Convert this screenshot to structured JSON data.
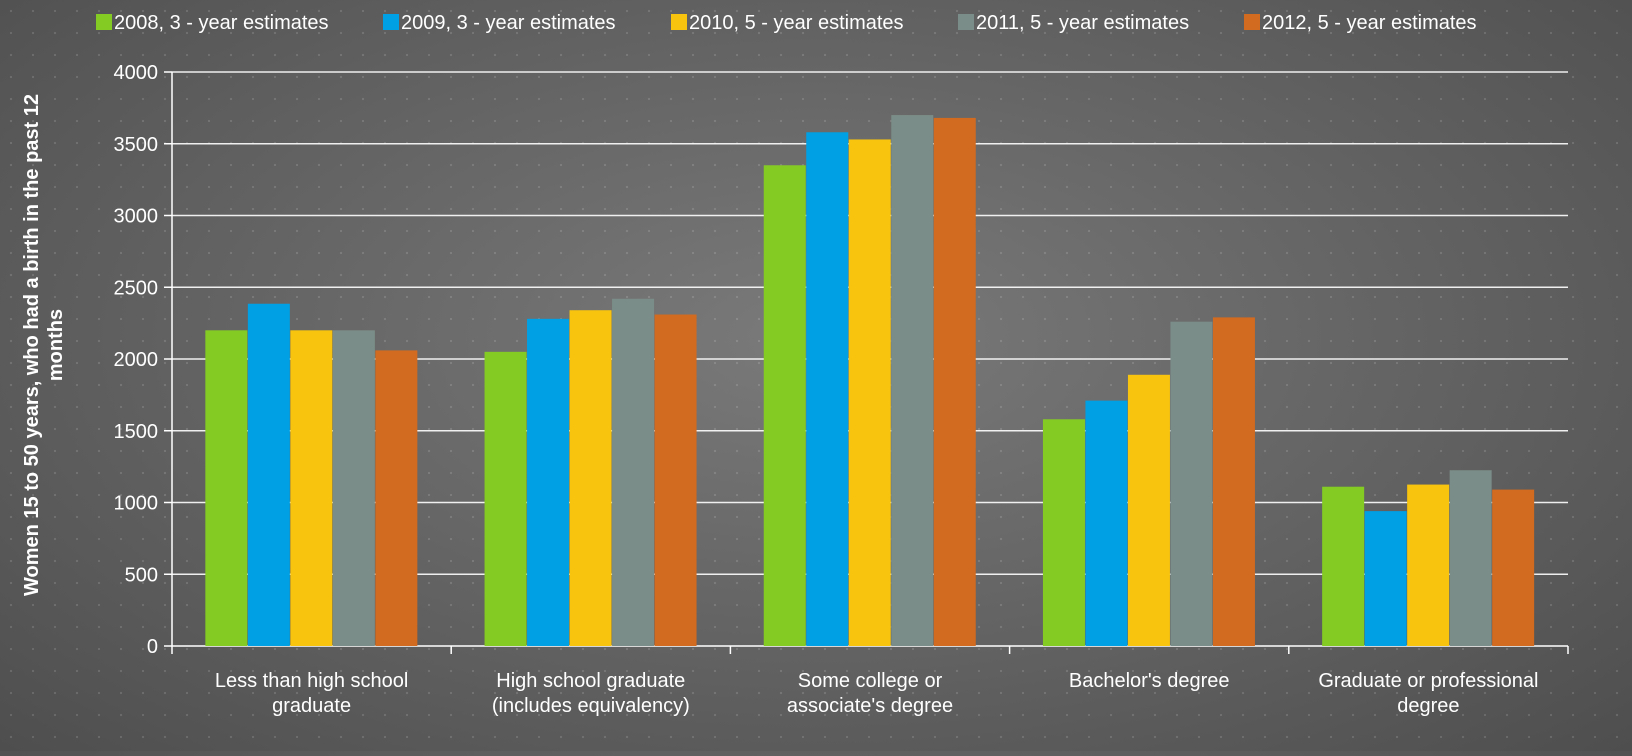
{
  "chart_data": {
    "type": "bar",
    "title": "",
    "ylabel": "Women 15 to 50 years, who had a birth in the past 12 months",
    "xlabel": "",
    "ylim": [
      0,
      4000
    ],
    "yticks": [
      0,
      500,
      1000,
      1500,
      2000,
      2500,
      3000,
      3500,
      4000
    ],
    "grid": "horizontal",
    "legend_position": "top",
    "categories": [
      [
        "Less than high school",
        "graduate"
      ],
      [
        "High school graduate",
        "(includes equivalency)"
      ],
      [
        "Some college or",
        "associate's degree"
      ],
      [
        "Bachelor's degree"
      ],
      [
        "Graduate or professional",
        "degree"
      ]
    ],
    "series": [
      {
        "name": "2008, 3 - year estimates",
        "color": "#84cc24",
        "values": [
          2200,
          2050,
          3350,
          1580,
          1110
        ]
      },
      {
        "name": "2009, 3 - year estimates",
        "color": "#00a0e4",
        "values": [
          2385,
          2280,
          3580,
          1710,
          940
        ]
      },
      {
        "name": "2010, 5 - year estimates",
        "color": "#f8c40e",
        "values": [
          2200,
          2340,
          3530,
          1890,
          1125
        ]
      },
      {
        "name": "2011, 5 - year estimates",
        "color": "#7b8d88",
        "values": [
          2200,
          2420,
          3700,
          2260,
          1225
        ]
      },
      {
        "name": "2012, 5 - year estimates",
        "color": "#d26a20",
        "values": [
          2060,
          2310,
          3680,
          2290,
          1090
        ]
      }
    ]
  }
}
